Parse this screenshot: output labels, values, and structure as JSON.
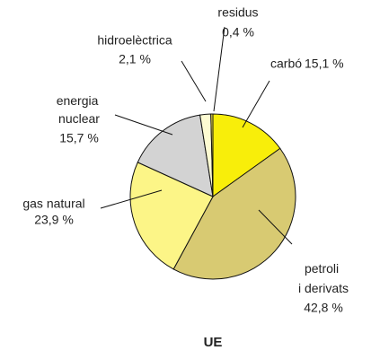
{
  "chart_data": {
    "type": "pie",
    "title": "UE",
    "categories": [
      "carbó",
      "petroli i derivats",
      "gas natural",
      "energia nuclear",
      "hidroelèctrica",
      "residus"
    ],
    "values": [
      15.1,
      42.8,
      23.9,
      15.7,
      2.1,
      0.4
    ],
    "value_labels": [
      "15,1 %",
      "42,8 %",
      "23,9 %",
      "15,7 %",
      "2,1 %",
      "0,4 %"
    ],
    "colors": [
      "#f8ee0a",
      "#d8ca72",
      "#fcf587",
      "#d3d3d3",
      "#fdfbd2",
      "#efe04a"
    ]
  }
}
